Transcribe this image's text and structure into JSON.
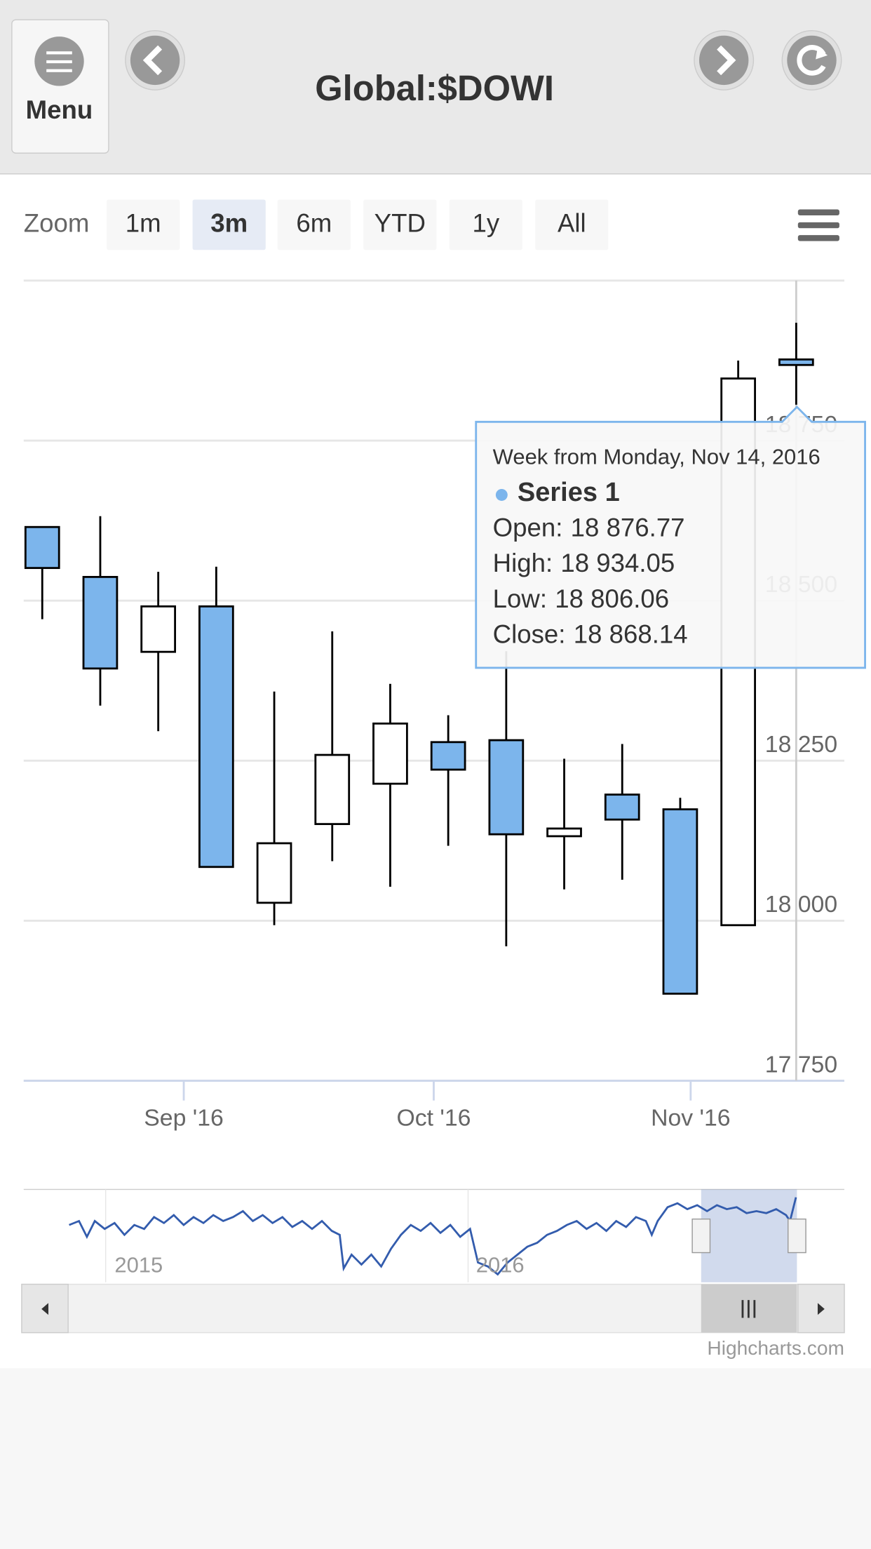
{
  "header": {
    "menu": "Menu",
    "title": "Global:$DOWI"
  },
  "zoom": {
    "label": "Zoom",
    "buttons": [
      "1m",
      "3m",
      "6m",
      "YTD",
      "1y",
      "All"
    ],
    "selected": 1
  },
  "navigator": {
    "labels": [
      "2015",
      "2016"
    ]
  },
  "credits": "Highcharts.com",
  "chart_data": {
    "type": "candlestick",
    "x": [
      0,
      1,
      2,
      3,
      4,
      5,
      6,
      7,
      8,
      9,
      10,
      11,
      12,
      13
    ],
    "xlim": [
      -0.32,
      13.83
    ],
    "xticks": [
      {
        "value": 2.44,
        "label": "Sep '16"
      },
      {
        "value": 6.75,
        "label": "Oct '16"
      },
      {
        "value": 11.18,
        "label": "Nov '16"
      }
    ],
    "ylim": [
      17750,
      19000
    ],
    "yticks": [
      {
        "value": 17750,
        "label": "17 750"
      },
      {
        "value": 18000,
        "label": "18 000"
      },
      {
        "value": 18250,
        "label": "18 250"
      },
      {
        "value": 18500,
        "label": "18 500"
      },
      {
        "value": 18750,
        "label": "18 750"
      }
    ],
    "grid": true,
    "series": [
      {
        "name": "Series 1",
        "color": "#7cb5ec",
        "up_color": "#ffffff",
        "open": [
          18615,
          18537,
          18420,
          18491,
          18028,
          18151,
          18214,
          18279,
          18282,
          18132,
          18197,
          18174,
          17993,
          18876.77
        ],
        "high": [
          18615,
          18632,
          18545,
          18553,
          18358,
          18452,
          18370,
          18321,
          18421,
          18253,
          18276,
          18192,
          18875,
          18934.05
        ],
        "low": [
          18471,
          18336,
          18296,
          18084,
          17993,
          18093,
          18053,
          18117,
          17960,
          18049,
          18064,
          17886,
          17993,
          18806.06
        ],
        "close": [
          18551,
          18394,
          18491,
          18084,
          18121,
          18259,
          18308,
          18236,
          18135,
          18144,
          18158,
          17886,
          18847,
          18868.14
        ]
      }
    ],
    "tooltip": {
      "heading": "Week from Monday, Nov 14, 2016",
      "rows": [
        {
          "label": "Open:",
          "value": "18 876.77"
        },
        {
          "label": "High:",
          "value": "18 934.05"
        },
        {
          "label": "Low:",
          "value": "18 806.06"
        },
        {
          "label": "Close:",
          "value": "18 868.14"
        }
      ]
    }
  }
}
